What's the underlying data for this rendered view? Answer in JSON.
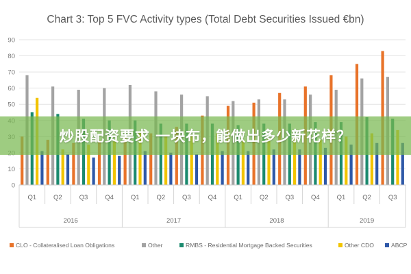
{
  "chart_data": {
    "type": "bar",
    "title": "Chart 3: Top 5 FVC Activity types (Total Debt Securities Issued €bn)",
    "ylim": [
      0,
      90
    ],
    "yticks": [
      0,
      10,
      20,
      30,
      40,
      50,
      60,
      70,
      80,
      90
    ],
    "grid": true,
    "legend_position": "bottom",
    "categories": [
      "Q1",
      "Q2",
      "Q3",
      "Q4",
      "Q1",
      "Q2",
      "Q3",
      "Q4",
      "Q1",
      "Q2",
      "Q3",
      "Q4",
      "Q1",
      "Q2",
      "Q3"
    ],
    "years": [
      {
        "label": "2016",
        "quarters": 4
      },
      {
        "label": "2017",
        "quarters": 4
      },
      {
        "label": "2018",
        "quarters": 4
      },
      {
        "label": "2019",
        "quarters": 3
      }
    ],
    "series": [
      {
        "name": "CLO - Collateralised Loan Obligations",
        "color": "#e8732a",
        "values": [
          30,
          28,
          26,
          28,
          30,
          32,
          36,
          43,
          49,
          51,
          57,
          61,
          68,
          75,
          83
        ]
      },
      {
        "name": "Other",
        "color": "#a3a3a3",
        "values": [
          68,
          61,
          59,
          60,
          62,
          58,
          56,
          55,
          52,
          53,
          53,
          56,
          59,
          66,
          67
        ]
      },
      {
        "name": "RMBS - Residential Mortgage Backed Securities",
        "color": "#1b8a6e",
        "values": [
          45,
          44,
          41,
          40,
          40,
          38,
          38,
          38,
          37,
          38,
          38,
          39,
          39,
          42,
          41
        ]
      },
      {
        "name": "Other CDO",
        "color": "#f2c400",
        "values": [
          54,
          22,
          25,
          27,
          33,
          30,
          31,
          32,
          28,
          29,
          30,
          28,
          30,
          32,
          34
        ]
      },
      {
        "name": "ABCP",
        "color": "#2e58a8",
        "values": [
          21,
          19,
          17,
          18,
          21,
          20,
          19,
          21,
          21,
          22,
          22,
          23,
          25,
          26,
          26
        ]
      }
    ]
  },
  "overlay": {
    "banner_text": "炒股配资要求 一块布，能做出多少新花样？"
  }
}
